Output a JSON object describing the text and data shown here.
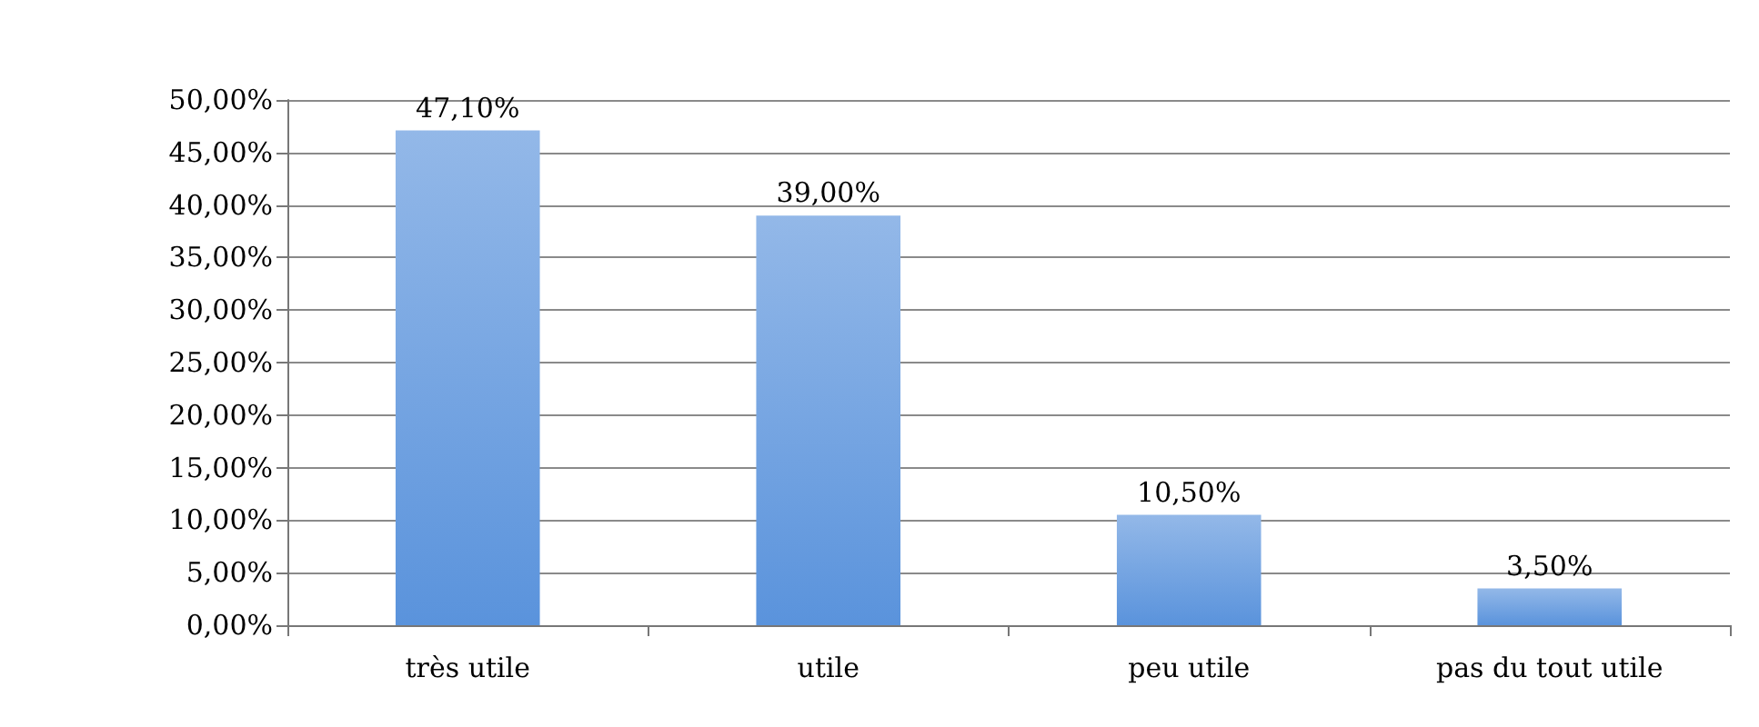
{
  "chart_data": {
    "type": "bar",
    "categories": [
      "très utile",
      "utile",
      "peu utile",
      "pas du tout utile"
    ],
    "values": [
      47.1,
      39.0,
      10.5,
      3.5
    ],
    "value_labels": [
      "47,10%",
      "39,00%",
      "10,50%",
      "3,50%"
    ],
    "color": "#5a93dc",
    "ylim": [
      0,
      50
    ],
    "yticks": [
      {
        "value": 0,
        "label": "0,00%"
      },
      {
        "value": 5,
        "label": "5,00%"
      },
      {
        "value": 10,
        "label": "10,00%"
      },
      {
        "value": 15,
        "label": "15,00%"
      },
      {
        "value": 20,
        "label": "20,00%"
      },
      {
        "value": 25,
        "label": "25,00%"
      },
      {
        "value": 30,
        "label": "30,00%"
      },
      {
        "value": 35,
        "label": "35,00%"
      },
      {
        "value": 40,
        "label": "40,00%"
      },
      {
        "value": 45,
        "label": "45,00%"
      },
      {
        "value": 50,
        "label": "50,00%"
      }
    ],
    "grid": "y"
  }
}
